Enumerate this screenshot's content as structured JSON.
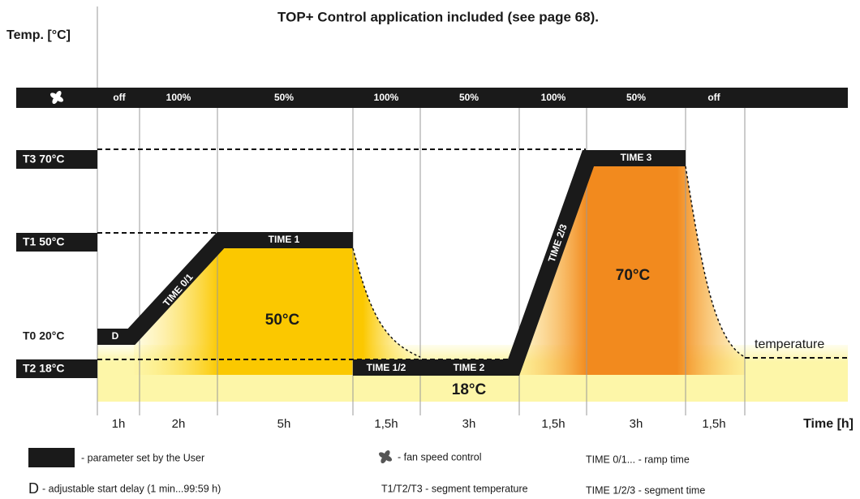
{
  "header": {
    "title": "TOP+ Control application included (see page 68)."
  },
  "axes": {
    "y_label": "Temp. [°C]",
    "x_label": "Time [h]"
  },
  "fan_speeds": [
    "off",
    "100%",
    "50%",
    "100%",
    "50%",
    "100%",
    "50%",
    "off"
  ],
  "temperature_levels": [
    "T3 70°C",
    "T1 50°C",
    "T0 20°C",
    "T2 18°C"
  ],
  "durations": [
    "1h",
    "2h",
    "5h",
    "1,5h",
    "3h",
    "1,5h",
    "3h",
    "1,5h"
  ],
  "segments": [
    "D",
    "TIME 0/1",
    "TIME 1",
    "TIME 1/2",
    "TIME 2",
    "TIME 2/3",
    "TIME 3"
  ],
  "area_labels": [
    "50°C",
    "70°C",
    "18°C",
    "temperature"
  ],
  "legend": [
    {
      "text": "- parameter set by the User"
    },
    {
      "symbol": "D",
      "text": "- adjustable start delay (1 min...99:59 h)"
    },
    {
      "text": "- fan speed control"
    },
    {
      "text": "T1/T2/T3 - segment temperature"
    },
    {
      "text": "TIME 0/1... - ramp time"
    },
    {
      "text": "TIME 1/2/3 - segment time"
    }
  ]
}
